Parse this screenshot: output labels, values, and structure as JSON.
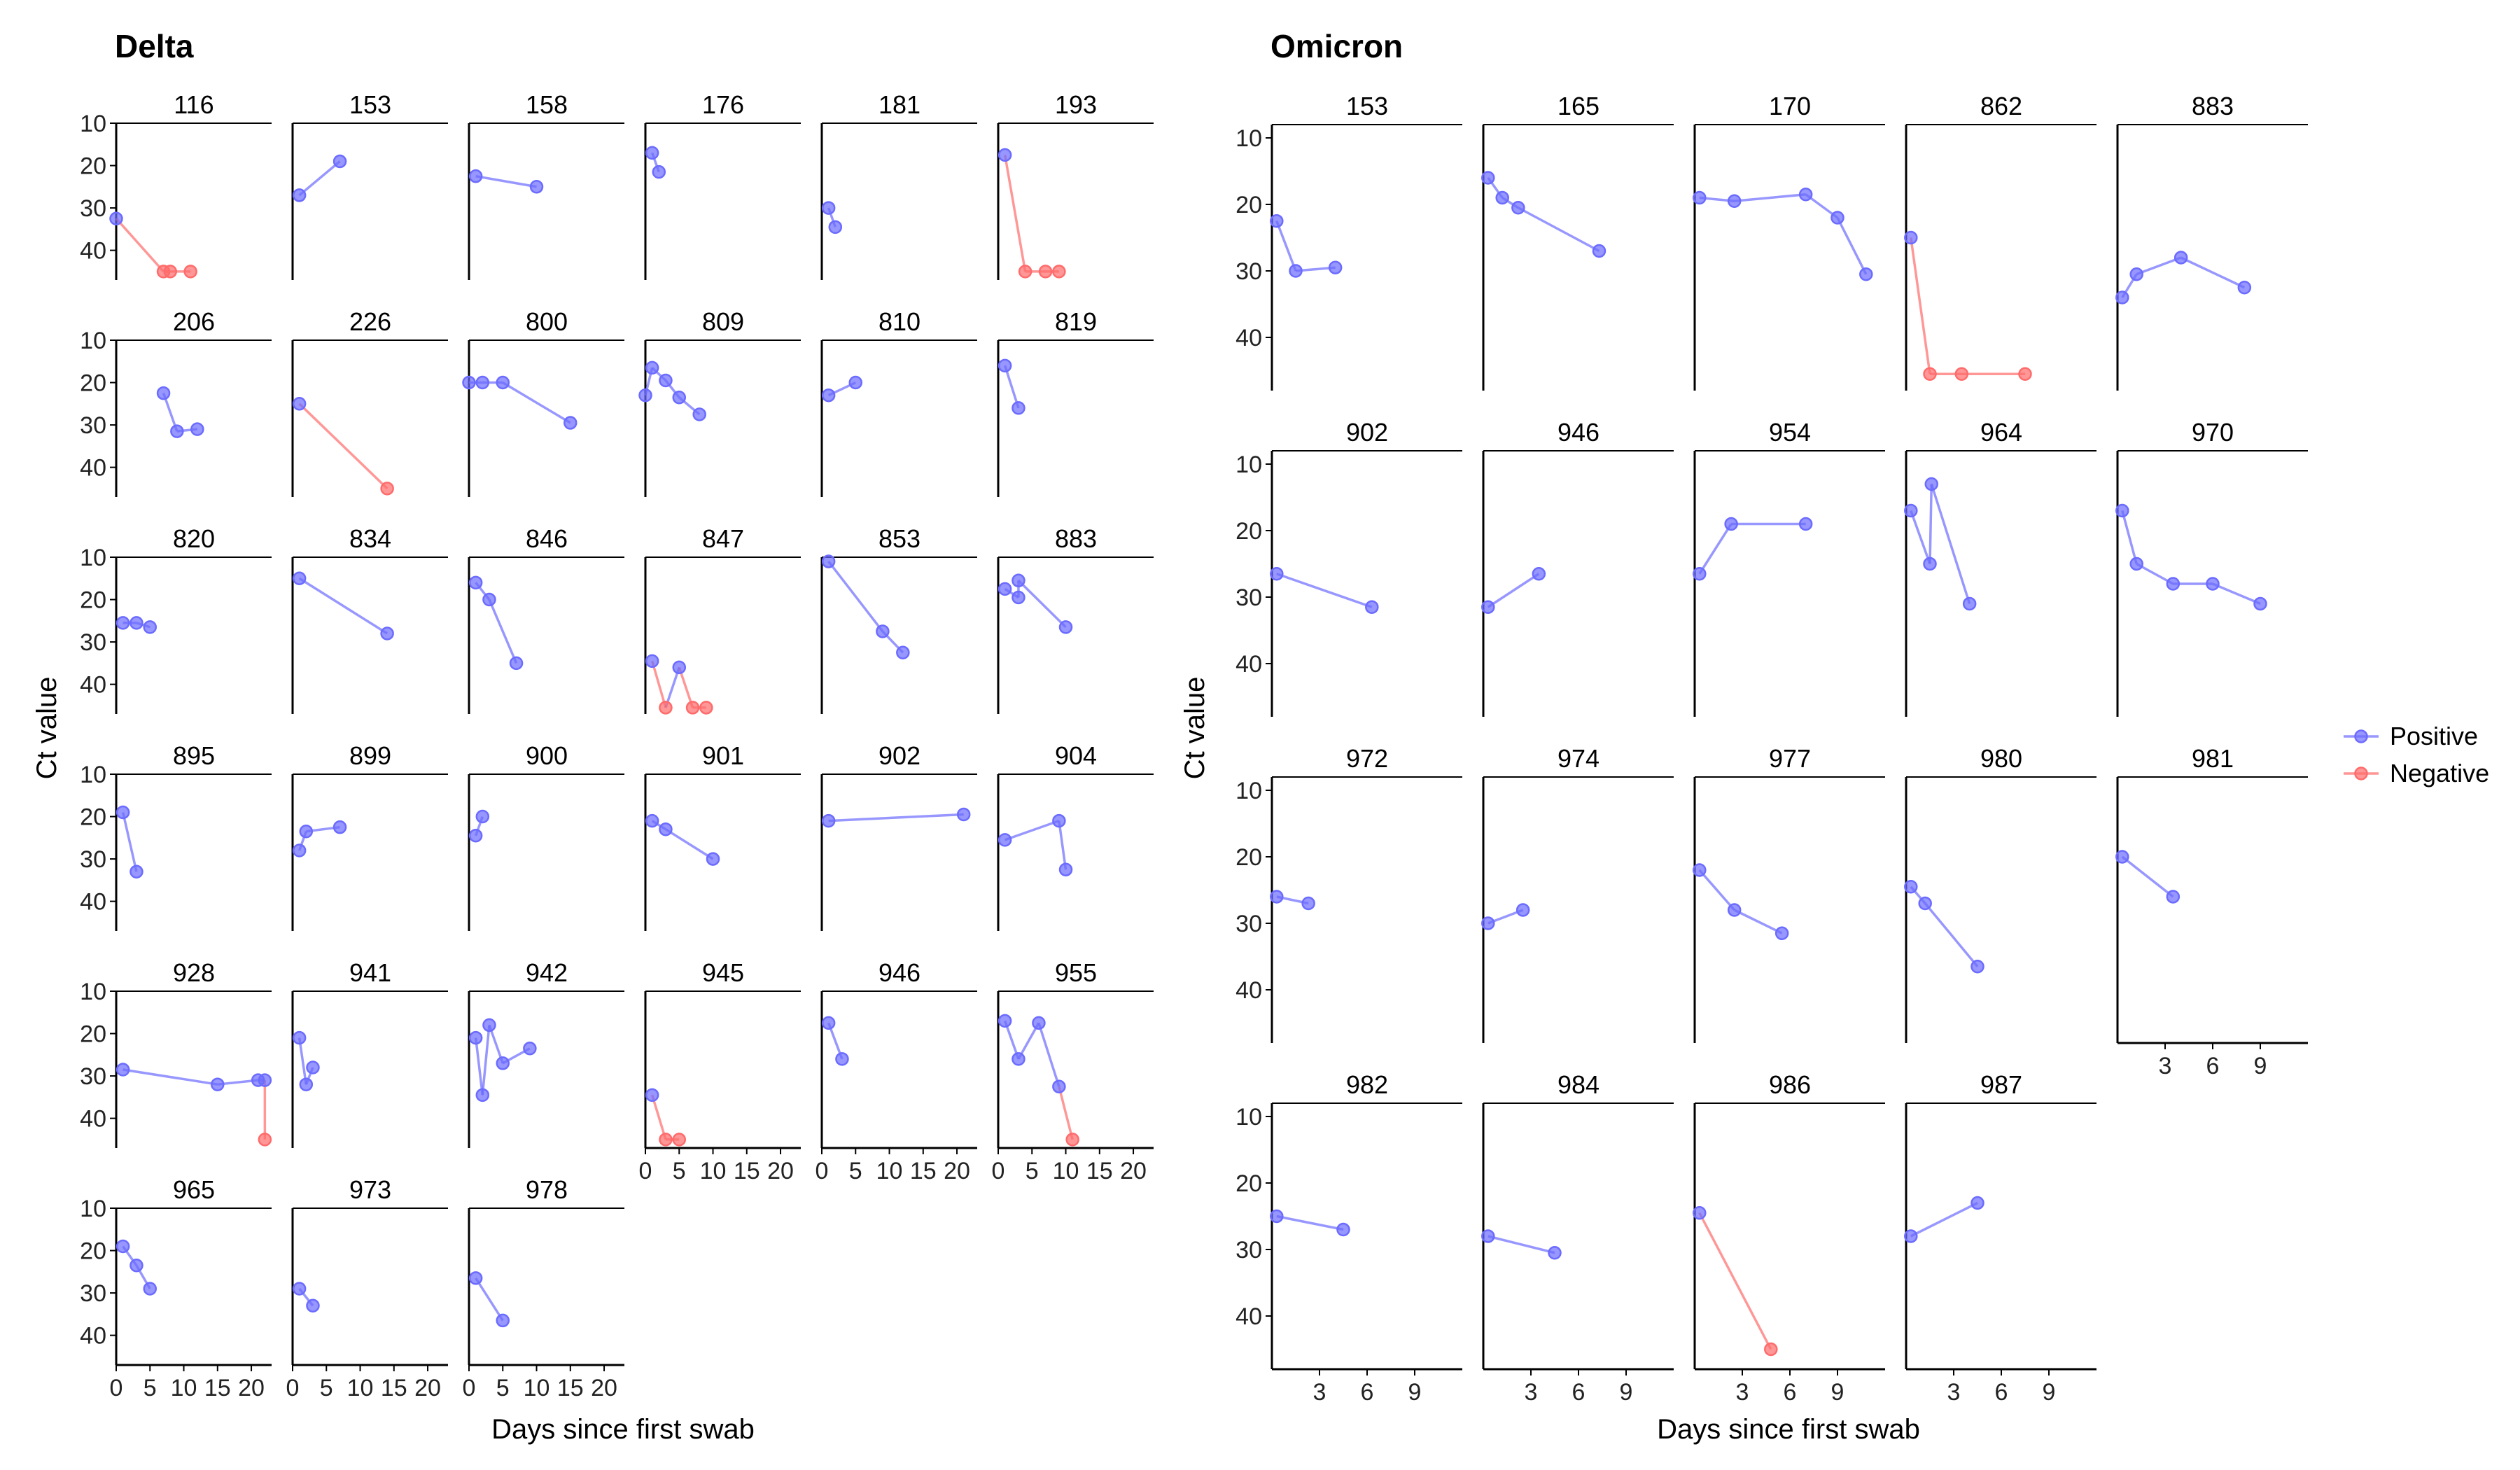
{
  "chart_data": [
    {
      "type": "line",
      "title": "Delta",
      "xlabel": "Days since first swab",
      "ylabel": "Ct value",
      "xlim": [
        0,
        23
      ],
      "xticks": [
        0,
        5,
        10,
        15,
        20
      ],
      "ylim": [
        10,
        47
      ],
      "yticks": [
        10,
        20,
        30,
        40
      ],
      "y_reversed": true,
      "grid": false,
      "panels": [
        {
          "id": "116",
          "points": [
            [
              0,
              32.5,
              "Positive"
            ],
            [
              7,
              45,
              "Negative"
            ],
            [
              8,
              45,
              "Negative"
            ],
            [
              11,
              45,
              "Negative"
            ]
          ]
        },
        {
          "id": "153",
          "points": [
            [
              1,
              27,
              "Positive"
            ],
            [
              7,
              19,
              "Positive"
            ]
          ]
        },
        {
          "id": "158",
          "points": [
            [
              1,
              22.5,
              "Positive"
            ],
            [
              10,
              25,
              "Positive"
            ]
          ]
        },
        {
          "id": "176",
          "points": [
            [
              1,
              17,
              "Positive"
            ],
            [
              2,
              21.5,
              "Positive"
            ]
          ]
        },
        {
          "id": "181",
          "points": [
            [
              1,
              30,
              "Positive"
            ],
            [
              2,
              34.5,
              "Positive"
            ]
          ]
        },
        {
          "id": "193",
          "points": [
            [
              1,
              17.5,
              "Positive"
            ],
            [
              4,
              45,
              "Negative"
            ],
            [
              7,
              45,
              "Negative"
            ],
            [
              9,
              45,
              "Negative"
            ]
          ]
        },
        {
          "id": "206",
          "points": [
            [
              7,
              22.5,
              "Positive"
            ],
            [
              9,
              31.5,
              "Positive"
            ],
            [
              12,
              31,
              "Positive"
            ]
          ]
        },
        {
          "id": "226",
          "points": [
            [
              1,
              25,
              "Positive"
            ],
            [
              14,
              45,
              "Negative"
            ]
          ]
        },
        {
          "id": "800",
          "points": [
            [
              0,
              20,
              "Positive"
            ],
            [
              2,
              20,
              "Positive"
            ],
            [
              5,
              20,
              "Positive"
            ],
            [
              15,
              29.5,
              "Positive"
            ]
          ]
        },
        {
          "id": "809",
          "points": [
            [
              0,
              23,
              "Positive"
            ],
            [
              1,
              16.5,
              "Positive"
            ],
            [
              3,
              19.5,
              "Positive"
            ],
            [
              5,
              23.5,
              "Positive"
            ],
            [
              8,
              27.5,
              "Positive"
            ]
          ]
        },
        {
          "id": "810",
          "points": [
            [
              1,
              23,
              "Positive"
            ],
            [
              5,
              20,
              "Positive"
            ]
          ]
        },
        {
          "id": "819",
          "points": [
            [
              1,
              16,
              "Positive"
            ],
            [
              3,
              26,
              "Positive"
            ]
          ]
        },
        {
          "id": "820",
          "points": [
            [
              1,
              25.5,
              "Positive"
            ],
            [
              3,
              25.5,
              "Positive"
            ],
            [
              5,
              26.5,
              "Positive"
            ]
          ]
        },
        {
          "id": "834",
          "points": [
            [
              1,
              15,
              "Positive"
            ],
            [
              14,
              28,
              "Positive"
            ]
          ]
        },
        {
          "id": "846",
          "points": [
            [
              1,
              16,
              "Positive"
            ],
            [
              3,
              20,
              "Positive"
            ],
            [
              7,
              35,
              "Positive"
            ]
          ]
        },
        {
          "id": "847",
          "points": [
            [
              1,
              34.5,
              "Positive"
            ],
            [
              3,
              45.5,
              "Negative"
            ],
            [
              5,
              36,
              "Positive"
            ],
            [
              7,
              45.5,
              "Negative"
            ],
            [
              9,
              45.5,
              "Negative"
            ]
          ]
        },
        {
          "id": "853",
          "points": [
            [
              1,
              11,
              "Positive"
            ],
            [
              9,
              27.5,
              "Positive"
            ],
            [
              12,
              32.5,
              "Positive"
            ]
          ]
        },
        {
          "id": "883",
          "points": [
            [
              1,
              17.5,
              "Positive"
            ],
            [
              3,
              19.5,
              "Positive"
            ],
            [
              3,
              15.5,
              "Positive"
            ],
            [
              10,
              26.5,
              "Positive"
            ]
          ]
        },
        {
          "id": "895",
          "points": [
            [
              1,
              19,
              "Positive"
            ],
            [
              3,
              33,
              "Positive"
            ]
          ]
        },
        {
          "id": "899",
          "points": [
            [
              1,
              28,
              "Positive"
            ],
            [
              2,
              23.5,
              "Positive"
            ],
            [
              7,
              22.5,
              "Positive"
            ]
          ]
        },
        {
          "id": "900",
          "points": [
            [
              1,
              24.5,
              "Positive"
            ],
            [
              2,
              20,
              "Positive"
            ]
          ]
        },
        {
          "id": "901",
          "points": [
            [
              1,
              21,
              "Positive"
            ],
            [
              3,
              23,
              "Positive"
            ],
            [
              10,
              30,
              "Positive"
            ]
          ]
        },
        {
          "id": "902",
          "points": [
            [
              1,
              21,
              "Positive"
            ],
            [
              21,
              19.5,
              "Positive"
            ]
          ]
        },
        {
          "id": "904",
          "points": [
            [
              1,
              25.5,
              "Positive"
            ],
            [
              9,
              21,
              "Positive"
            ],
            [
              10,
              32.5,
              "Positive"
            ]
          ]
        },
        {
          "id": "928",
          "points": [
            [
              1,
              28.5,
              "Positive"
            ],
            [
              15,
              32,
              "Positive"
            ],
            [
              21,
              31,
              "Positive"
            ],
            [
              22,
              31,
              "Positive"
            ],
            [
              22,
              45,
              "Negative"
            ]
          ]
        },
        {
          "id": "941",
          "points": [
            [
              1,
              21,
              "Positive"
            ],
            [
              2,
              32,
              "Positive"
            ],
            [
              3,
              28,
              "Positive"
            ]
          ]
        },
        {
          "id": "942",
          "points": [
            [
              1,
              21,
              "Positive"
            ],
            [
              2,
              34.5,
              "Positive"
            ],
            [
              3,
              18,
              "Positive"
            ],
            [
              5,
              27,
              "Positive"
            ],
            [
              9,
              23.5,
              "Positive"
            ]
          ]
        },
        {
          "id": "945",
          "points": [
            [
              1,
              34.5,
              "Positive"
            ],
            [
              3,
              45,
              "Negative"
            ],
            [
              5,
              45,
              "Negative"
            ]
          ]
        },
        {
          "id": "946",
          "points": [
            [
              1,
              17.5,
              "Positive"
            ],
            [
              3,
              26,
              "Positive"
            ]
          ]
        },
        {
          "id": "955",
          "points": [
            [
              1,
              17,
              "Positive"
            ],
            [
              3,
              26,
              "Positive"
            ],
            [
              6,
              17.5,
              "Positive"
            ],
            [
              9,
              32.5,
              "Positive"
            ],
            [
              11,
              45,
              "Negative"
            ]
          ]
        },
        {
          "id": "965",
          "points": [
            [
              1,
              19,
              "Positive"
            ],
            [
              3,
              23.5,
              "Positive"
            ],
            [
              5,
              29,
              "Positive"
            ]
          ]
        },
        {
          "id": "973",
          "points": [
            [
              1,
              29,
              "Positive"
            ],
            [
              3,
              33,
              "Positive"
            ]
          ]
        },
        {
          "id": "978",
          "points": [
            [
              1,
              26.5,
              "Positive"
            ],
            [
              5,
              36.5,
              "Positive"
            ]
          ]
        }
      ]
    },
    {
      "type": "line",
      "title": "Omicron",
      "xlabel": "Days since first swab",
      "ylabel": "Ct value",
      "xlim": [
        0,
        12
      ],
      "xticks": [
        3,
        6,
        9
      ],
      "ylim": [
        8,
        48
      ],
      "yticks": [
        10,
        20,
        30,
        40
      ],
      "y_reversed": true,
      "grid": false,
      "panels": [
        {
          "id": "153",
          "points": [
            [
              0.3,
              22.5,
              "Positive"
            ],
            [
              1.5,
              30,
              "Positive"
            ],
            [
              4,
              29.5,
              "Positive"
            ]
          ]
        },
        {
          "id": "165",
          "points": [
            [
              0.3,
              16,
              "Positive"
            ],
            [
              1.2,
              19,
              "Positive"
            ],
            [
              2.2,
              20.5,
              "Positive"
            ],
            [
              7.3,
              27,
              "Positive"
            ]
          ]
        },
        {
          "id": "170",
          "points": [
            [
              0.3,
              19,
              "Positive"
            ],
            [
              2.5,
              19.5,
              "Positive"
            ],
            [
              7,
              18.5,
              "Positive"
            ],
            [
              9,
              22,
              "Positive"
            ],
            [
              10.8,
              30.5,
              "Positive"
            ]
          ]
        },
        {
          "id": "862",
          "points": [
            [
              0.3,
              25,
              "Positive"
            ],
            [
              1.5,
              45.5,
              "Negative"
            ],
            [
              3.5,
              45.5,
              "Negative"
            ],
            [
              7.5,
              45.5,
              "Negative"
            ]
          ]
        },
        {
          "id": "883",
          "points": [
            [
              0.3,
              34,
              "Positive"
            ],
            [
              1.2,
              30.5,
              "Positive"
            ],
            [
              4,
              28,
              "Positive"
            ],
            [
              8,
              32.5,
              "Positive"
            ]
          ]
        },
        {
          "id": "902",
          "points": [
            [
              0.3,
              26.5,
              "Positive"
            ],
            [
              6.3,
              31.5,
              "Positive"
            ]
          ]
        },
        {
          "id": "946",
          "points": [
            [
              0.3,
              31.5,
              "Positive"
            ],
            [
              3.5,
              26.5,
              "Positive"
            ]
          ]
        },
        {
          "id": "954",
          "points": [
            [
              0.3,
              26.5,
              "Positive"
            ],
            [
              2.3,
              19,
              "Positive"
            ],
            [
              7,
              19,
              "Positive"
            ]
          ]
        },
        {
          "id": "964",
          "points": [
            [
              0.3,
              17,
              "Positive"
            ],
            [
              1.5,
              25,
              "Positive"
            ],
            [
              1.6,
              13,
              "Positive"
            ],
            [
              4,
              31,
              "Positive"
            ]
          ]
        },
        {
          "id": "970",
          "points": [
            [
              0.3,
              17,
              "Positive"
            ],
            [
              1.2,
              25,
              "Positive"
            ],
            [
              3.5,
              28,
              "Positive"
            ],
            [
              6,
              28,
              "Positive"
            ],
            [
              9,
              31,
              "Positive"
            ]
          ]
        },
        {
          "id": "972",
          "points": [
            [
              0.3,
              26,
              "Positive"
            ],
            [
              2.3,
              27,
              "Positive"
            ]
          ]
        },
        {
          "id": "974",
          "points": [
            [
              0.3,
              30,
              "Positive"
            ],
            [
              2.5,
              28,
              "Positive"
            ]
          ]
        },
        {
          "id": "977",
          "points": [
            [
              0.3,
              22,
              "Positive"
            ],
            [
              2.5,
              28,
              "Positive"
            ],
            [
              5.5,
              31.5,
              "Positive"
            ]
          ]
        },
        {
          "id": "980",
          "points": [
            [
              0.3,
              24.5,
              "Positive"
            ],
            [
              1.2,
              27,
              "Positive"
            ],
            [
              4.5,
              36.5,
              "Positive"
            ]
          ]
        },
        {
          "id": "981",
          "points": [
            [
              0.3,
              20,
              "Positive"
            ],
            [
              3.5,
              26,
              "Positive"
            ]
          ]
        },
        {
          "id": "982",
          "points": [
            [
              0.3,
              25,
              "Positive"
            ],
            [
              4.5,
              27,
              "Positive"
            ]
          ]
        },
        {
          "id": "984",
          "points": [
            [
              0.3,
              28,
              "Positive"
            ],
            [
              4.5,
              30.5,
              "Positive"
            ]
          ]
        },
        {
          "id": "986",
          "points": [
            [
              0.3,
              24.5,
              "Positive"
            ],
            [
              4.8,
              45,
              "Negative"
            ]
          ]
        },
        {
          "id": "987",
          "points": [
            [
              0.3,
              28,
              "Positive"
            ],
            [
              4.5,
              23,
              "Positive"
            ]
          ]
        }
      ]
    }
  ],
  "legend": {
    "items": [
      {
        "label": "Positive",
        "color": "#6b6bff"
      },
      {
        "label": "Negative",
        "color": "#ff6b6b"
      }
    ],
    "placement": "right"
  },
  "colors": {
    "Positive": "#6b6bff",
    "Negative": "#ff6b6b",
    "line_alpha": 0.7
  }
}
